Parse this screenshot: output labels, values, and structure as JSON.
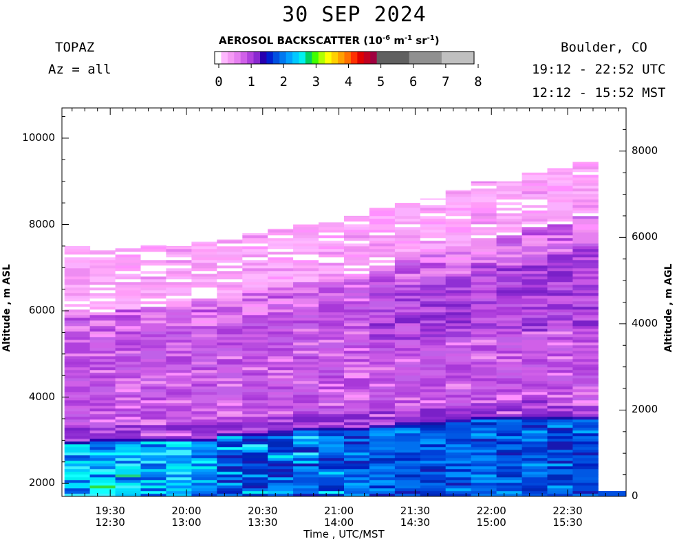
{
  "header": {
    "title": "30 SEP 2024",
    "instrument": "TOPAZ",
    "azimuth": "Az = all",
    "location": "Boulder, CO",
    "utc_range": "19:12 - 22:52 UTC",
    "mst_range": "12:12 - 15:52 MST"
  },
  "colorbar": {
    "title_main": "AEROSOL BACKSCATTER (10",
    "title_exp1": "-6",
    "title_mid": " m",
    "title_exp2": "-1",
    "title_mid2": " sr",
    "title_exp3": "-1",
    "title_end": ")",
    "ticks": [
      "0",
      "1",
      "2",
      "3",
      "4",
      "5",
      "6",
      "7",
      "8"
    ],
    "colors": [
      "#ffffff",
      "#ffb8ff",
      "#f59af5",
      "#e680f0",
      "#d060e8",
      "#b040dd",
      "#8a28d0",
      "#2800b0",
      "#0020d0",
      "#0050e0",
      "#0078f0",
      "#00a0ff",
      "#00c8ff",
      "#00f0f0",
      "#00d060",
      "#40ff00",
      "#b0ff00",
      "#ffff00",
      "#ffd000",
      "#ffa000",
      "#ff7000",
      "#ff3000",
      "#e00000",
      "#c00020",
      "#a00040",
      "#606060",
      "#909090",
      "#c0c0c0"
    ]
  },
  "chart_data": {
    "type": "heatmap",
    "title": "30 SEP 2024",
    "xlabel": "Time , UTC/MST",
    "ylabel_left": "Altitude , m ASL",
    "ylabel_right": "Altitude , m AGL",
    "x_ticks_utc": [
      "19:30",
      "20:00",
      "20:30",
      "21:00",
      "21:30",
      "22:00",
      "22:30"
    ],
    "x_ticks_mst": [
      "12:30",
      "13:00",
      "13:30",
      "14:00",
      "14:30",
      "15:00",
      "15:30"
    ],
    "x_range": [
      "19:12",
      "22:52"
    ],
    "y_left_ticks": [
      "2000",
      "4000",
      "6000",
      "8000",
      "10000"
    ],
    "y_right_ticks": [
      "0",
      "2000",
      "4000",
      "6000",
      "8000"
    ],
    "y_range_asl": [
      1700,
      10700
    ],
    "colorbar_range": [
      0,
      8
    ],
    "profiles": [
      {
        "time": "19:12",
        "mixing_top_m": 3000,
        "aerosol_top_m": 7500
      },
      {
        "time": "19:22",
        "mixing_top_m": 3050,
        "aerosol_top_m": 7400
      },
      {
        "time": "19:32",
        "mixing_top_m": 3100,
        "aerosol_top_m": 7450
      },
      {
        "time": "19:42",
        "mixing_top_m": 3100,
        "aerosol_top_m": 7520
      },
      {
        "time": "19:52",
        "mixing_top_m": 3050,
        "aerosol_top_m": 7500
      },
      {
        "time": "20:02",
        "mixing_top_m": 3100,
        "aerosol_top_m": 7600
      },
      {
        "time": "20:12",
        "mixing_top_m": 3200,
        "aerosol_top_m": 7650
      },
      {
        "time": "20:22",
        "mixing_top_m": 3200,
        "aerosol_top_m": 7800
      },
      {
        "time": "20:32",
        "mixing_top_m": 3250,
        "aerosol_top_m": 7900
      },
      {
        "time": "20:42",
        "mixing_top_m": 3300,
        "aerosol_top_m": 8000
      },
      {
        "time": "20:52",
        "mixing_top_m": 3300,
        "aerosol_top_m": 8050
      },
      {
        "time": "21:02",
        "mixing_top_m": 3300,
        "aerosol_top_m": 8200
      },
      {
        "time": "21:12",
        "mixing_top_m": 3400,
        "aerosol_top_m": 8400
      },
      {
        "time": "21:22",
        "mixing_top_m": 3450,
        "aerosol_top_m": 8500
      },
      {
        "time": "21:32",
        "mixing_top_m": 3450,
        "aerosol_top_m": 8600
      },
      {
        "time": "21:42",
        "mixing_top_m": 3500,
        "aerosol_top_m": 8800
      },
      {
        "time": "21:52",
        "mixing_top_m": 3550,
        "aerosol_top_m": 9000
      },
      {
        "time": "22:02",
        "mixing_top_m": 3550,
        "aerosol_top_m": 9000
      },
      {
        "time": "22:12",
        "mixing_top_m": 3550,
        "aerosol_top_m": 9200
      },
      {
        "time": "22:22",
        "mixing_top_m": 3550,
        "aerosol_top_m": 9300
      },
      {
        "time": "22:32",
        "mixing_top_m": 3550,
        "aerosol_top_m": 9450
      }
    ]
  }
}
